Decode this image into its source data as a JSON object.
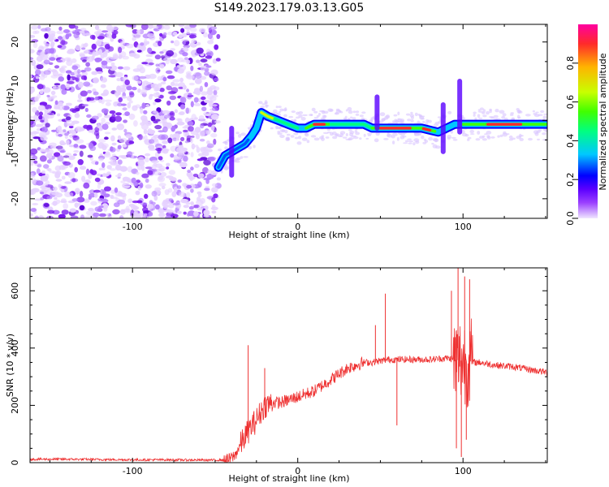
{
  "title": "S149.2023.179.03.13.G05",
  "chart_data": [
    {
      "type": "heatmap",
      "xlabel": "Height of straight line (km)",
      "ylabel": "Frequency (Hz)",
      "xlim": [
        -162,
        151
      ],
      "ylim": [
        -25,
        24.5
      ],
      "x_ticks": [
        -100,
        0,
        100
      ],
      "y_ticks": [
        -20,
        -10,
        0,
        10,
        20
      ],
      "colorbar": {
        "label": "Normalized spectral amplitude",
        "range": [
          0,
          1
        ],
        "ticks": [
          "0.0",
          "0.2",
          "0.4",
          "0.6",
          "0.8"
        ],
        "colors": [
          "#f0e6ff",
          "#7b00ff",
          "#0000ff",
          "#00c8ff",
          "#00ff80",
          "#40ff00",
          "#c8ff00",
          "#ffb400",
          "#ff2a2a",
          "#ff00a0"
        ]
      },
      "noise_region": {
        "x": [
          -162,
          -48
        ],
        "amplitude": 0.2
      },
      "ridge": [
        {
          "x": -48,
          "y": -12
        },
        {
          "x": -44,
          "y": -9
        },
        {
          "x": -40,
          "y": -8
        },
        {
          "x": -36,
          "y": -7
        },
        {
          "x": -32,
          "y": -6
        },
        {
          "x": -28,
          "y": -4
        },
        {
          "x": -25,
          "y": -2
        },
        {
          "x": -22,
          "y": 2
        },
        {
          "x": -18,
          "y": 1
        },
        {
          "x": -12,
          "y": 0
        },
        {
          "x": -6,
          "y": -1
        },
        {
          "x": 0,
          "y": -2
        },
        {
          "x": 5,
          "y": -2
        },
        {
          "x": 10,
          "y": -1
        },
        {
          "x": 20,
          "y": -1
        },
        {
          "x": 30,
          "y": -1
        },
        {
          "x": 40,
          "y": -1
        },
        {
          "x": 45,
          "y": -2
        },
        {
          "x": 50,
          "y": -2
        },
        {
          "x": 60,
          "y": -2
        },
        {
          "x": 70,
          "y": -2
        },
        {
          "x": 75,
          "y": -2
        },
        {
          "x": 80,
          "y": -2.5
        },
        {
          "x": 85,
          "y": -3
        },
        {
          "x": 90,
          "y": -2
        },
        {
          "x": 95,
          "y": -1
        },
        {
          "x": 100,
          "y": -1
        },
        {
          "x": 110,
          "y": -1
        },
        {
          "x": 120,
          "y": -1
        },
        {
          "x": 130,
          "y": -1
        },
        {
          "x": 140,
          "y": -1
        },
        {
          "x": 151,
          "y": -1
        }
      ]
    },
    {
      "type": "line",
      "xlabel": "Height of straight line (km)",
      "ylabel": "SNR (10 * v/v)",
      "xlim": [
        -162,
        151
      ],
      "ylim": [
        0,
        680
      ],
      "x_ticks": [
        -100,
        0,
        100
      ],
      "y_ticks": [
        0,
        200,
        400,
        600
      ],
      "color": "#ee3030",
      "series": [
        {
          "points": [
            [
              -162,
              12
            ],
            [
              -140,
              12
            ],
            [
              -120,
              11
            ],
            [
              -100,
              10
            ],
            [
              -80,
              10
            ],
            [
              -60,
              9
            ],
            [
              -50,
              9
            ],
            [
              -42,
              10
            ],
            [
              -38,
              25
            ],
            [
              -34,
              70
            ],
            [
              -30,
              110
            ],
            [
              -25,
              150
            ],
            [
              -20,
              200
            ],
            [
              -15,
              210
            ],
            [
              -10,
              210
            ],
            [
              -5,
              220
            ],
            [
              0,
              230
            ],
            [
              5,
              240
            ],
            [
              10,
              250
            ],
            [
              15,
              270
            ],
            [
              20,
              290
            ],
            [
              25,
              310
            ],
            [
              30,
              330
            ],
            [
              35,
              340
            ],
            [
              40,
              350
            ],
            [
              45,
              350
            ],
            [
              50,
              355
            ],
            [
              55,
              360
            ],
            [
              60,
              360
            ],
            [
              70,
              360
            ],
            [
              80,
              360
            ],
            [
              90,
              365
            ],
            [
              95,
              360
            ],
            [
              100,
              355
            ],
            [
              105,
              350
            ],
            [
              110,
              350
            ],
            [
              115,
              345
            ],
            [
              120,
              340
            ],
            [
              130,
              335
            ],
            [
              140,
              325
            ],
            [
              151,
              315
            ]
          ],
          "spikes": [
            [
              -30,
              410
            ],
            [
              -20,
              330
            ],
            [
              53,
              590
            ],
            [
              47,
              480
            ],
            [
              60,
              130
            ],
            [
              93,
              600
            ],
            [
              97,
              680
            ],
            [
              99,
              20
            ],
            [
              101,
              650
            ],
            [
              104,
              640
            ],
            [
              96,
              50
            ],
            [
              102,
              80
            ]
          ]
        }
      ]
    }
  ]
}
